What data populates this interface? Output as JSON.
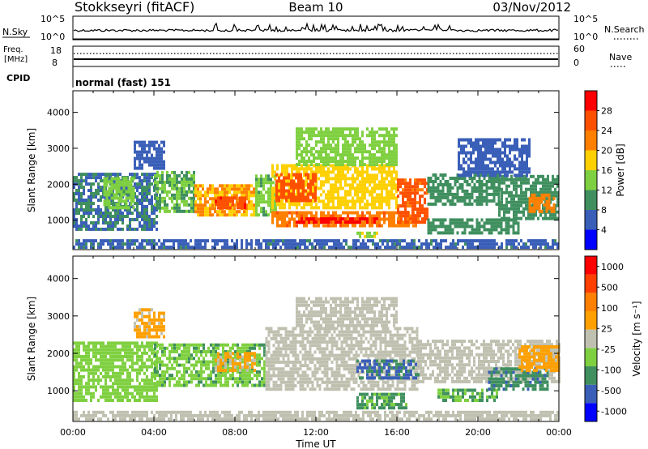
{
  "header": {
    "station": "Stokkseyri (fitACF)",
    "beam": "Beam 10",
    "date": "03/Nov/2012"
  },
  "nsky_panel": {
    "left_label": "N.Sky",
    "right_label": "N.Search",
    "left_ticks": [
      "10^5",
      "10^0"
    ],
    "right_ticks": [
      "10^5",
      "10^0"
    ]
  },
  "freq_panel": {
    "label_line1": "Freq.",
    "label_line2": "[MHz]",
    "right_label": "Nave",
    "left_ticks": [
      "18",
      "8"
    ],
    "right_ticks": [
      "60",
      "0"
    ]
  },
  "cpid": {
    "label": "CPID",
    "mode": "normal (fast) 151"
  },
  "chart_data": [
    {
      "type": "heatmap",
      "title": "",
      "xlabel": "Time UT",
      "ylabel": "Slant Range [km]",
      "x_ticks": [
        "00:00",
        "04:00",
        "08:00",
        "12:00",
        "16:00",
        "20:00",
        "00:00"
      ],
      "y_ticks": [
        "1000",
        "2000",
        "3000",
        "4000"
      ],
      "ylim": [
        180,
        4600
      ],
      "colorbar": {
        "label": "Power [dB]",
        "ticks": [
          "4",
          "8",
          "12",
          "16",
          "20",
          "24",
          "28"
        ],
        "range": [
          0,
          32
        ],
        "colors": [
          "#0000ff",
          "#3a5fb8",
          "#3f8f5f",
          "#7fd040",
          "#ffd000",
          "#ff8000",
          "#ff5000",
          "#ff0000"
        ]
      },
      "regions": [
        {
          "t": [
            0.0,
            4.2
          ],
          "r": [
            700,
            2300
          ],
          "value": 8
        },
        {
          "t": [
            1.5,
            3.0
          ],
          "r": [
            1300,
            2200
          ],
          "value": 14
        },
        {
          "t": [
            3.0,
            4.5
          ],
          "r": [
            2400,
            3200
          ],
          "value": 6
        },
        {
          "t": [
            4.0,
            6.0
          ],
          "r": [
            1200,
            2300
          ],
          "value": 12
        },
        {
          "t": [
            6.0,
            9.0
          ],
          "r": [
            1100,
            2000
          ],
          "value": 20
        },
        {
          "t": [
            7.0,
            8.5
          ],
          "r": [
            1300,
            1600
          ],
          "value": 27
        },
        {
          "t": [
            9.0,
            10.0
          ],
          "r": [
            1100,
            2200
          ],
          "value": 13
        },
        {
          "t": [
            9.8,
            17.0
          ],
          "r": [
            800,
            1200
          ],
          "value": 23
        },
        {
          "t": [
            11.0,
            15.0
          ],
          "r": [
            900,
            1050
          ],
          "value": 29
        },
        {
          "t": [
            9.8,
            16.0
          ],
          "r": [
            1300,
            2500
          ],
          "value": 18
        },
        {
          "t": [
            10.0,
            12.0
          ],
          "r": [
            1500,
            2300
          ],
          "value": 26
        },
        {
          "t": [
            11.0,
            16.0
          ],
          "r": [
            2500,
            3500
          ],
          "value": 14
        },
        {
          "t": [
            16.0,
            17.5
          ],
          "r": [
            900,
            2100
          ],
          "value": 25
        },
        {
          "t": [
            17.5,
            21.0
          ],
          "r": [
            1400,
            2300
          ],
          "value": 10
        },
        {
          "t": [
            21.0,
            24.0
          ],
          "r": [
            1000,
            2200
          ],
          "value": 10
        },
        {
          "t": [
            22.5,
            23.8
          ],
          "r": [
            1200,
            1700
          ],
          "value": 22
        },
        {
          "t": [
            19.0,
            22.5
          ],
          "r": [
            2200,
            3200
          ],
          "value": 6
        },
        {
          "t": [
            14.0,
            15.0
          ],
          "r": [
            500,
            650
          ],
          "value": 16
        },
        {
          "t": [
            17.5,
            22.0
          ],
          "r": [
            600,
            1000
          ],
          "value": 10
        },
        {
          "t": [
            0.0,
            24.0
          ],
          "r": [
            200,
            450
          ],
          "value": 7
        }
      ]
    },
    {
      "type": "heatmap",
      "title": "",
      "xlabel": "Time UT",
      "ylabel": "Slant Range [km]",
      "x_ticks": [
        "00:00",
        "04:00",
        "08:00",
        "12:00",
        "16:00",
        "20:00",
        "00:00"
      ],
      "y_ticks": [
        "1000",
        "2000",
        "3000",
        "4000"
      ],
      "ylim": [
        180,
        4600
      ],
      "colorbar": {
        "label": "Velocity [m s⁻¹]",
        "ticks": [
          "1000",
          "500",
          "100",
          "25",
          "-25",
          "-100",
          "-500",
          "-1000"
        ],
        "range": [
          -1200,
          1200
        ],
        "colors": [
          "#0000ff",
          "#3a5fb8",
          "#3f8f5f",
          "#7fd040",
          "#c0c0b0",
          "#ffa000",
          "#ff8000",
          "#ff4000",
          "#ff0000"
        ]
      },
      "regions": [
        {
          "t": [
            0.0,
            4.2
          ],
          "r": [
            700,
            2300
          ],
          "value": -300
        },
        {
          "t": [
            3.0,
            4.5
          ],
          "r": [
            2400,
            3200
          ],
          "value": 200
        },
        {
          "t": [
            4.0,
            9.5
          ],
          "r": [
            1100,
            2200
          ],
          "value": -350
        },
        {
          "t": [
            7.0,
            9.0
          ],
          "r": [
            1500,
            2000
          ],
          "value": 150
        },
        {
          "t": [
            9.5,
            17.0
          ],
          "r": [
            1000,
            2700
          ],
          "value": 0
        },
        {
          "t": [
            11.0,
            16.0
          ],
          "r": [
            2700,
            3500
          ],
          "value": -20
        },
        {
          "t": [
            14.0,
            17.0
          ],
          "r": [
            1300,
            1800
          ],
          "value": -700
        },
        {
          "t": [
            14.0,
            16.5
          ],
          "r": [
            500,
            900
          ],
          "value": -450
        },
        {
          "t": [
            17.0,
            24.0
          ],
          "r": [
            1200,
            2300
          ],
          "value": 0
        },
        {
          "t": [
            18.0,
            21.0
          ],
          "r": [
            700,
            1000
          ],
          "value": -400
        },
        {
          "t": [
            20.5,
            23.5
          ],
          "r": [
            1000,
            1600
          ],
          "value": -600
        },
        {
          "t": [
            22.0,
            24.0
          ],
          "r": [
            1500,
            2200
          ],
          "value": 300
        },
        {
          "t": [
            0.0,
            24.0
          ],
          "r": [
            200,
            450
          ],
          "value": 20
        }
      ]
    }
  ]
}
